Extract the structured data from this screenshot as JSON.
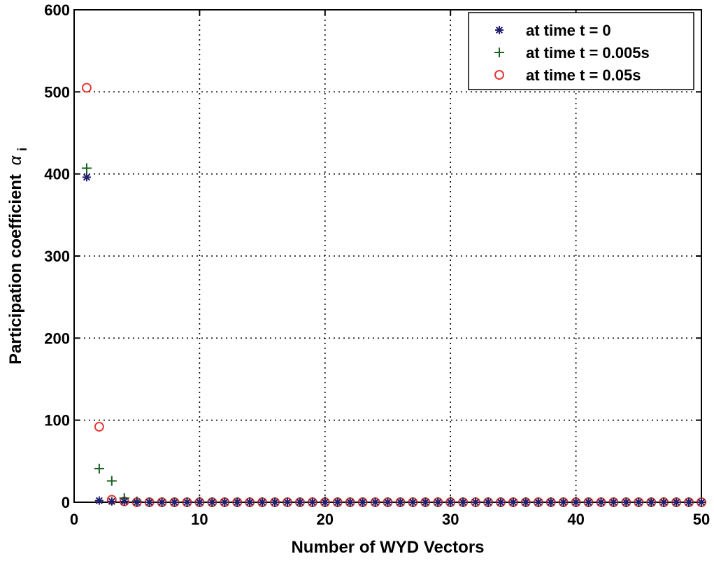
{
  "chart_data": {
    "type": "scatter",
    "title": "",
    "xlabel": "Number of WYD Vectors",
    "ylabel": "Participation coefficient",
    "ylabel_symbol": "α",
    "ylabel_subscript": "i",
    "xlim": [
      0,
      50
    ],
    "ylim": [
      0,
      600
    ],
    "xticks": [
      0,
      10,
      20,
      30,
      40,
      50
    ],
    "yticks": [
      0,
      100,
      200,
      300,
      400,
      500,
      600
    ],
    "grid": true,
    "legend_position": "top-right",
    "series": [
      {
        "name": "at time t = 0",
        "marker": "asterisk",
        "color": "#1f1f6e",
        "x": [
          1,
          2,
          3,
          4,
          5,
          6,
          7,
          8,
          9,
          10,
          11,
          12,
          13,
          14,
          15,
          16,
          17,
          18,
          19,
          20,
          21,
          22,
          23,
          24,
          25,
          26,
          27,
          28,
          29,
          30,
          31,
          32,
          33,
          34,
          35,
          36,
          37,
          38,
          39,
          40,
          41,
          42,
          43,
          44,
          45,
          46,
          47,
          48,
          49,
          50
        ],
        "y": [
          396,
          2,
          1,
          1,
          0,
          0,
          0,
          0,
          0,
          0,
          0,
          0,
          0,
          0,
          0,
          0,
          0,
          0,
          0,
          0,
          0,
          0,
          0,
          0,
          0,
          0,
          0,
          0,
          0,
          0,
          0,
          0,
          0,
          0,
          0,
          0,
          0,
          0,
          0,
          0,
          0,
          0,
          0,
          0,
          0,
          0,
          0,
          0,
          0,
          0
        ]
      },
      {
        "name": "at time t = 0.005s",
        "marker": "plus",
        "color": "#1b5e20",
        "x": [
          1,
          2,
          3,
          4,
          5,
          6,
          7,
          8,
          9,
          10,
          11,
          12,
          13,
          14,
          15,
          16,
          17,
          18,
          19,
          20,
          21,
          22,
          23,
          24,
          25,
          26,
          27,
          28,
          29,
          30,
          31,
          32,
          33,
          34,
          35,
          36,
          37,
          38,
          39,
          40,
          41,
          42,
          43,
          44,
          45,
          46,
          47,
          48,
          49,
          50
        ],
        "y": [
          407,
          41,
          26,
          5,
          1,
          0,
          0,
          0,
          0,
          0,
          0,
          0,
          0,
          0,
          0,
          0,
          0,
          0,
          0,
          0,
          0,
          0,
          0,
          0,
          0,
          0,
          0,
          0,
          0,
          0,
          0,
          0,
          0,
          0,
          0,
          0,
          0,
          0,
          0,
          0,
          0,
          0,
          0,
          0,
          0,
          0,
          0,
          0,
          0,
          0
        ]
      },
      {
        "name": "at time t = 0.05s",
        "marker": "circle",
        "color": "#e53935",
        "x": [
          1,
          2,
          3,
          4,
          5,
          6,
          7,
          8,
          9,
          10,
          11,
          12,
          13,
          14,
          15,
          16,
          17,
          18,
          19,
          20,
          21,
          22,
          23,
          24,
          25,
          26,
          27,
          28,
          29,
          30,
          31,
          32,
          33,
          34,
          35,
          36,
          37,
          38,
          39,
          40,
          41,
          42,
          43,
          44,
          45,
          46,
          47,
          48,
          49,
          50
        ],
        "y": [
          505,
          92,
          3,
          1,
          0,
          0,
          0,
          0,
          0,
          0,
          0,
          0,
          0,
          0,
          0,
          0,
          0,
          0,
          0,
          0,
          0,
          0,
          0,
          0,
          0,
          0,
          0,
          0,
          0,
          0,
          0,
          0,
          0,
          0,
          0,
          0,
          0,
          0,
          0,
          0,
          0,
          0,
          0,
          0,
          0,
          0,
          0,
          0,
          0,
          0
        ]
      }
    ]
  }
}
